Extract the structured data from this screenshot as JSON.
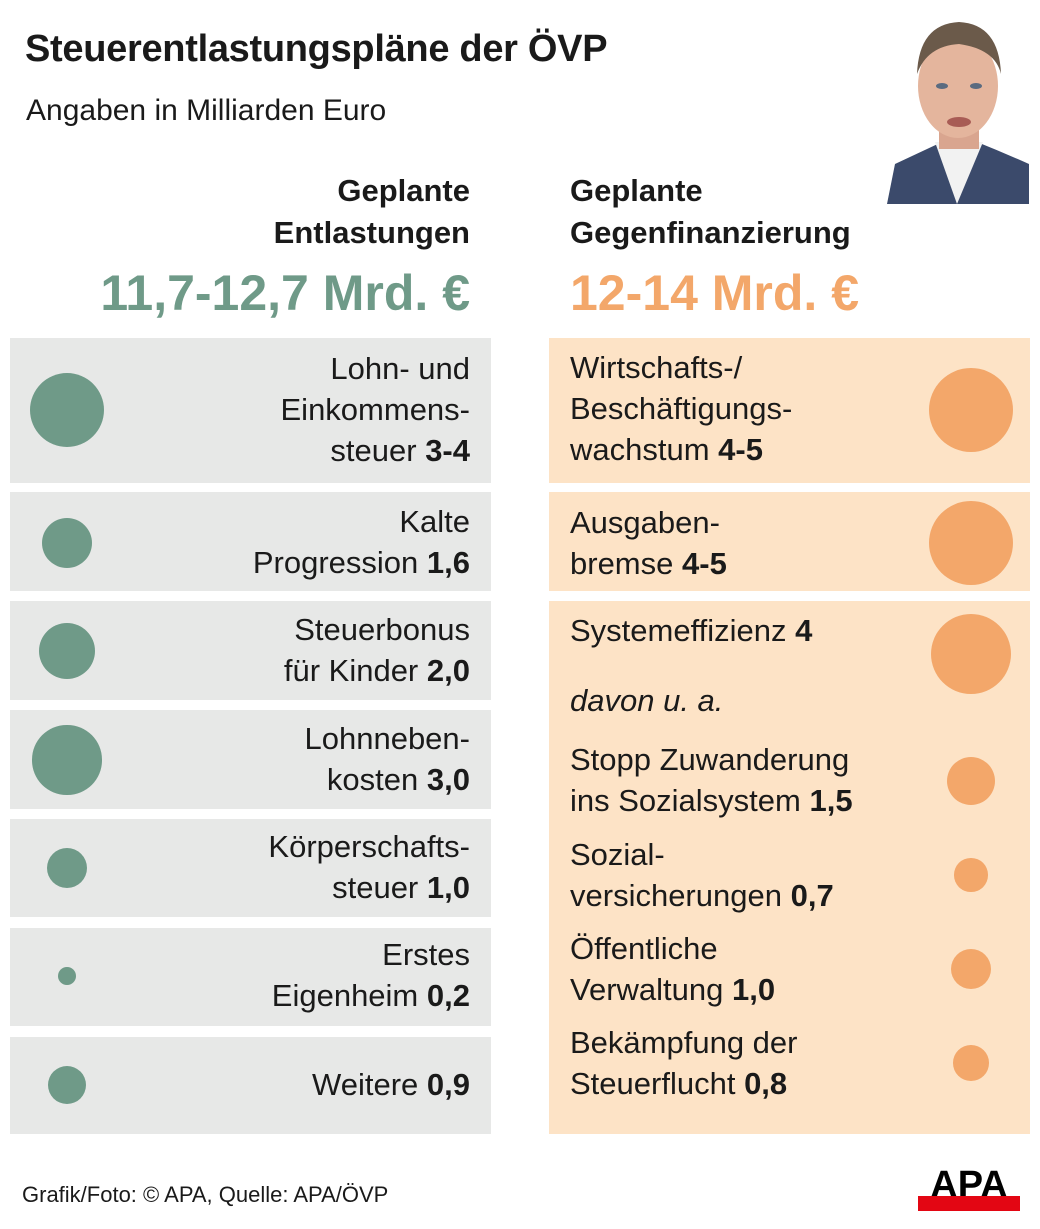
{
  "title": "Steuerentlastungspläne der ÖVP",
  "subtitle": "Angaben in Milliarden Euro",
  "colors": {
    "green": "#6f9a88",
    "orange": "#f3a76a",
    "left_bg": "#e7e8e7",
    "right_bg": "#fde3c6"
  },
  "photo": "portrait-photo",
  "left": {
    "heading": [
      "Geplante",
      "Entlastungen"
    ],
    "total": "11,7-12,7 Mrd. €"
  },
  "right": {
    "heading": [
      "Geplante",
      "Gegenfinanzierung"
    ],
    "total": "12-14 Mrd. €",
    "note": "davon u. a."
  },
  "chart_data": {
    "type": "bubble",
    "title": "Steuerentlastungspläne der ÖVP",
    "subtitle": "Angaben in Milliarden Euro",
    "series": [
      {
        "name": "Geplante Entlastungen",
        "total": "11,7-12,7 Mrd. €",
        "items": [
          {
            "lines": [
              "Lohn- und",
              "Einkommens-",
              "steuer"
            ],
            "value_label": "3-4",
            "value": [
              3,
              4
            ]
          },
          {
            "lines": [
              "Kalte",
              "Progression"
            ],
            "value_label": "1,6",
            "value": 1.6
          },
          {
            "lines": [
              "Steuerbonus",
              "für Kinder"
            ],
            "value_label": "2,0",
            "value": 2.0
          },
          {
            "lines": [
              "Lohnneben-",
              "kosten"
            ],
            "value_label": "3,0",
            "value": 3.0
          },
          {
            "lines": [
              "Körperschafts-",
              "steuer"
            ],
            "value_label": "1,0",
            "value": 1.0
          },
          {
            "lines": [
              "Erstes",
              "Eigenheim"
            ],
            "value_label": "0,2",
            "value": 0.2
          },
          {
            "lines": [
              "Weitere"
            ],
            "value_label": "0,9",
            "value": 0.9
          }
        ]
      },
      {
        "name": "Geplante Gegenfinanzierung",
        "total": "12-14 Mrd. €",
        "items": [
          {
            "lines": [
              "Wirtschafts-/",
              "Beschäftigungs-",
              "wachstum"
            ],
            "value_label": "4-5",
            "value": [
              4,
              5
            ]
          },
          {
            "lines": [
              "Ausgaben-",
              "bremse"
            ],
            "value_label": "4-5",
            "value": [
              4,
              5
            ]
          },
          {
            "lines": [
              "Systemeffizienz"
            ],
            "value_label": "4",
            "value": 4
          },
          {
            "lines": [
              "Stopp Zuwanderung",
              "ins Sozialsystem"
            ],
            "value_label": "1,5",
            "value": 1.5,
            "sub": true
          },
          {
            "lines": [
              "Sozial-",
              "versicherungen"
            ],
            "value_label": "0,7",
            "value": 0.7,
            "sub": true
          },
          {
            "lines": [
              "Öffentliche",
              "Verwaltung"
            ],
            "value_label": "1,0",
            "value": 1.0,
            "sub": true
          },
          {
            "lines": [
              "Bekämpfung der",
              "Steuerflucht"
            ],
            "value_label": "0,8",
            "value": 0.8,
            "sub": true
          }
        ]
      }
    ]
  },
  "footer": "Grafik/Foto: © APA, Quelle: APA/ÖVP",
  "logo": "APA"
}
